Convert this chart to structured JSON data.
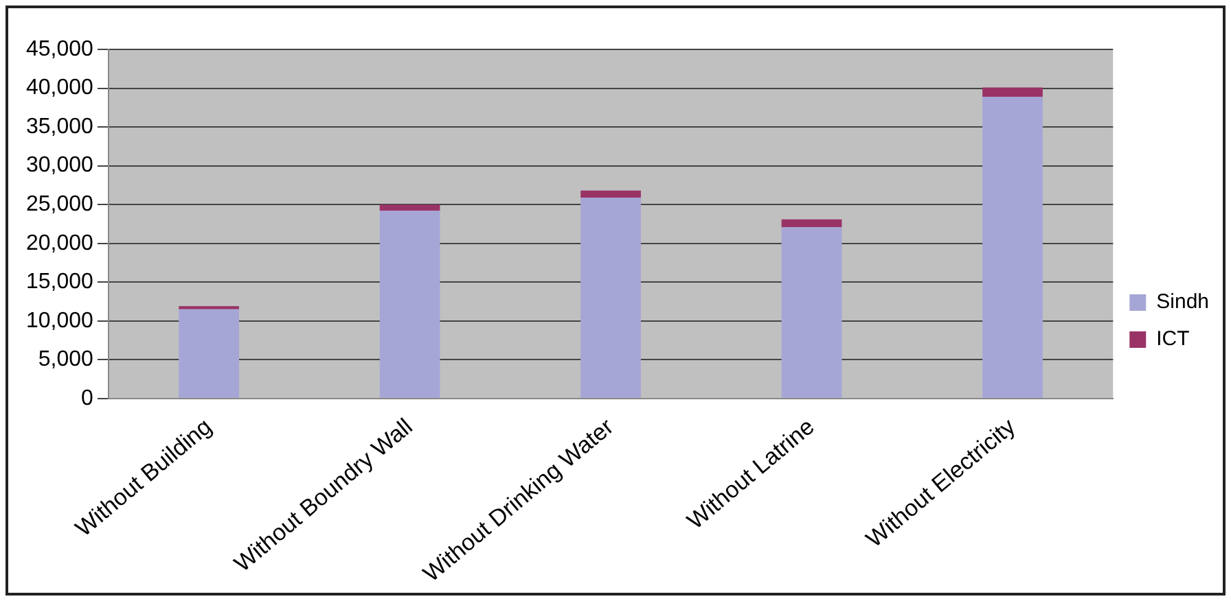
{
  "chart_data": {
    "type": "bar",
    "stacked": true,
    "categories": [
      "Without Building",
      "Without Boundry Wall",
      "Without Drinking Water",
      "Without Latrine",
      "Without Electricity"
    ],
    "series": [
      {
        "name": "Sindh",
        "color": "#a6a6d6",
        "values": [
          11500,
          24200,
          25900,
          22100,
          38900
        ]
      },
      {
        "name": "ICT",
        "color": "#993366",
        "values": [
          400,
          800,
          900,
          1000,
          1200
        ]
      }
    ],
    "ylim": [
      0,
      45000
    ],
    "yticks": [
      {
        "value": 0,
        "label": "0"
      },
      {
        "value": 5000,
        "label": "5,000"
      },
      {
        "value": 10000,
        "label": "10,000"
      },
      {
        "value": 15000,
        "label": "15,000"
      },
      {
        "value": 20000,
        "label": "20,000"
      },
      {
        "value": 25000,
        "label": "25,000"
      },
      {
        "value": 30000,
        "label": "30,000"
      },
      {
        "value": 35000,
        "label": "35,000"
      },
      {
        "value": 40000,
        "label": "40,000"
      },
      {
        "value": 45000,
        "label": "45,000"
      }
    ],
    "grid": "y",
    "legend": "right"
  }
}
